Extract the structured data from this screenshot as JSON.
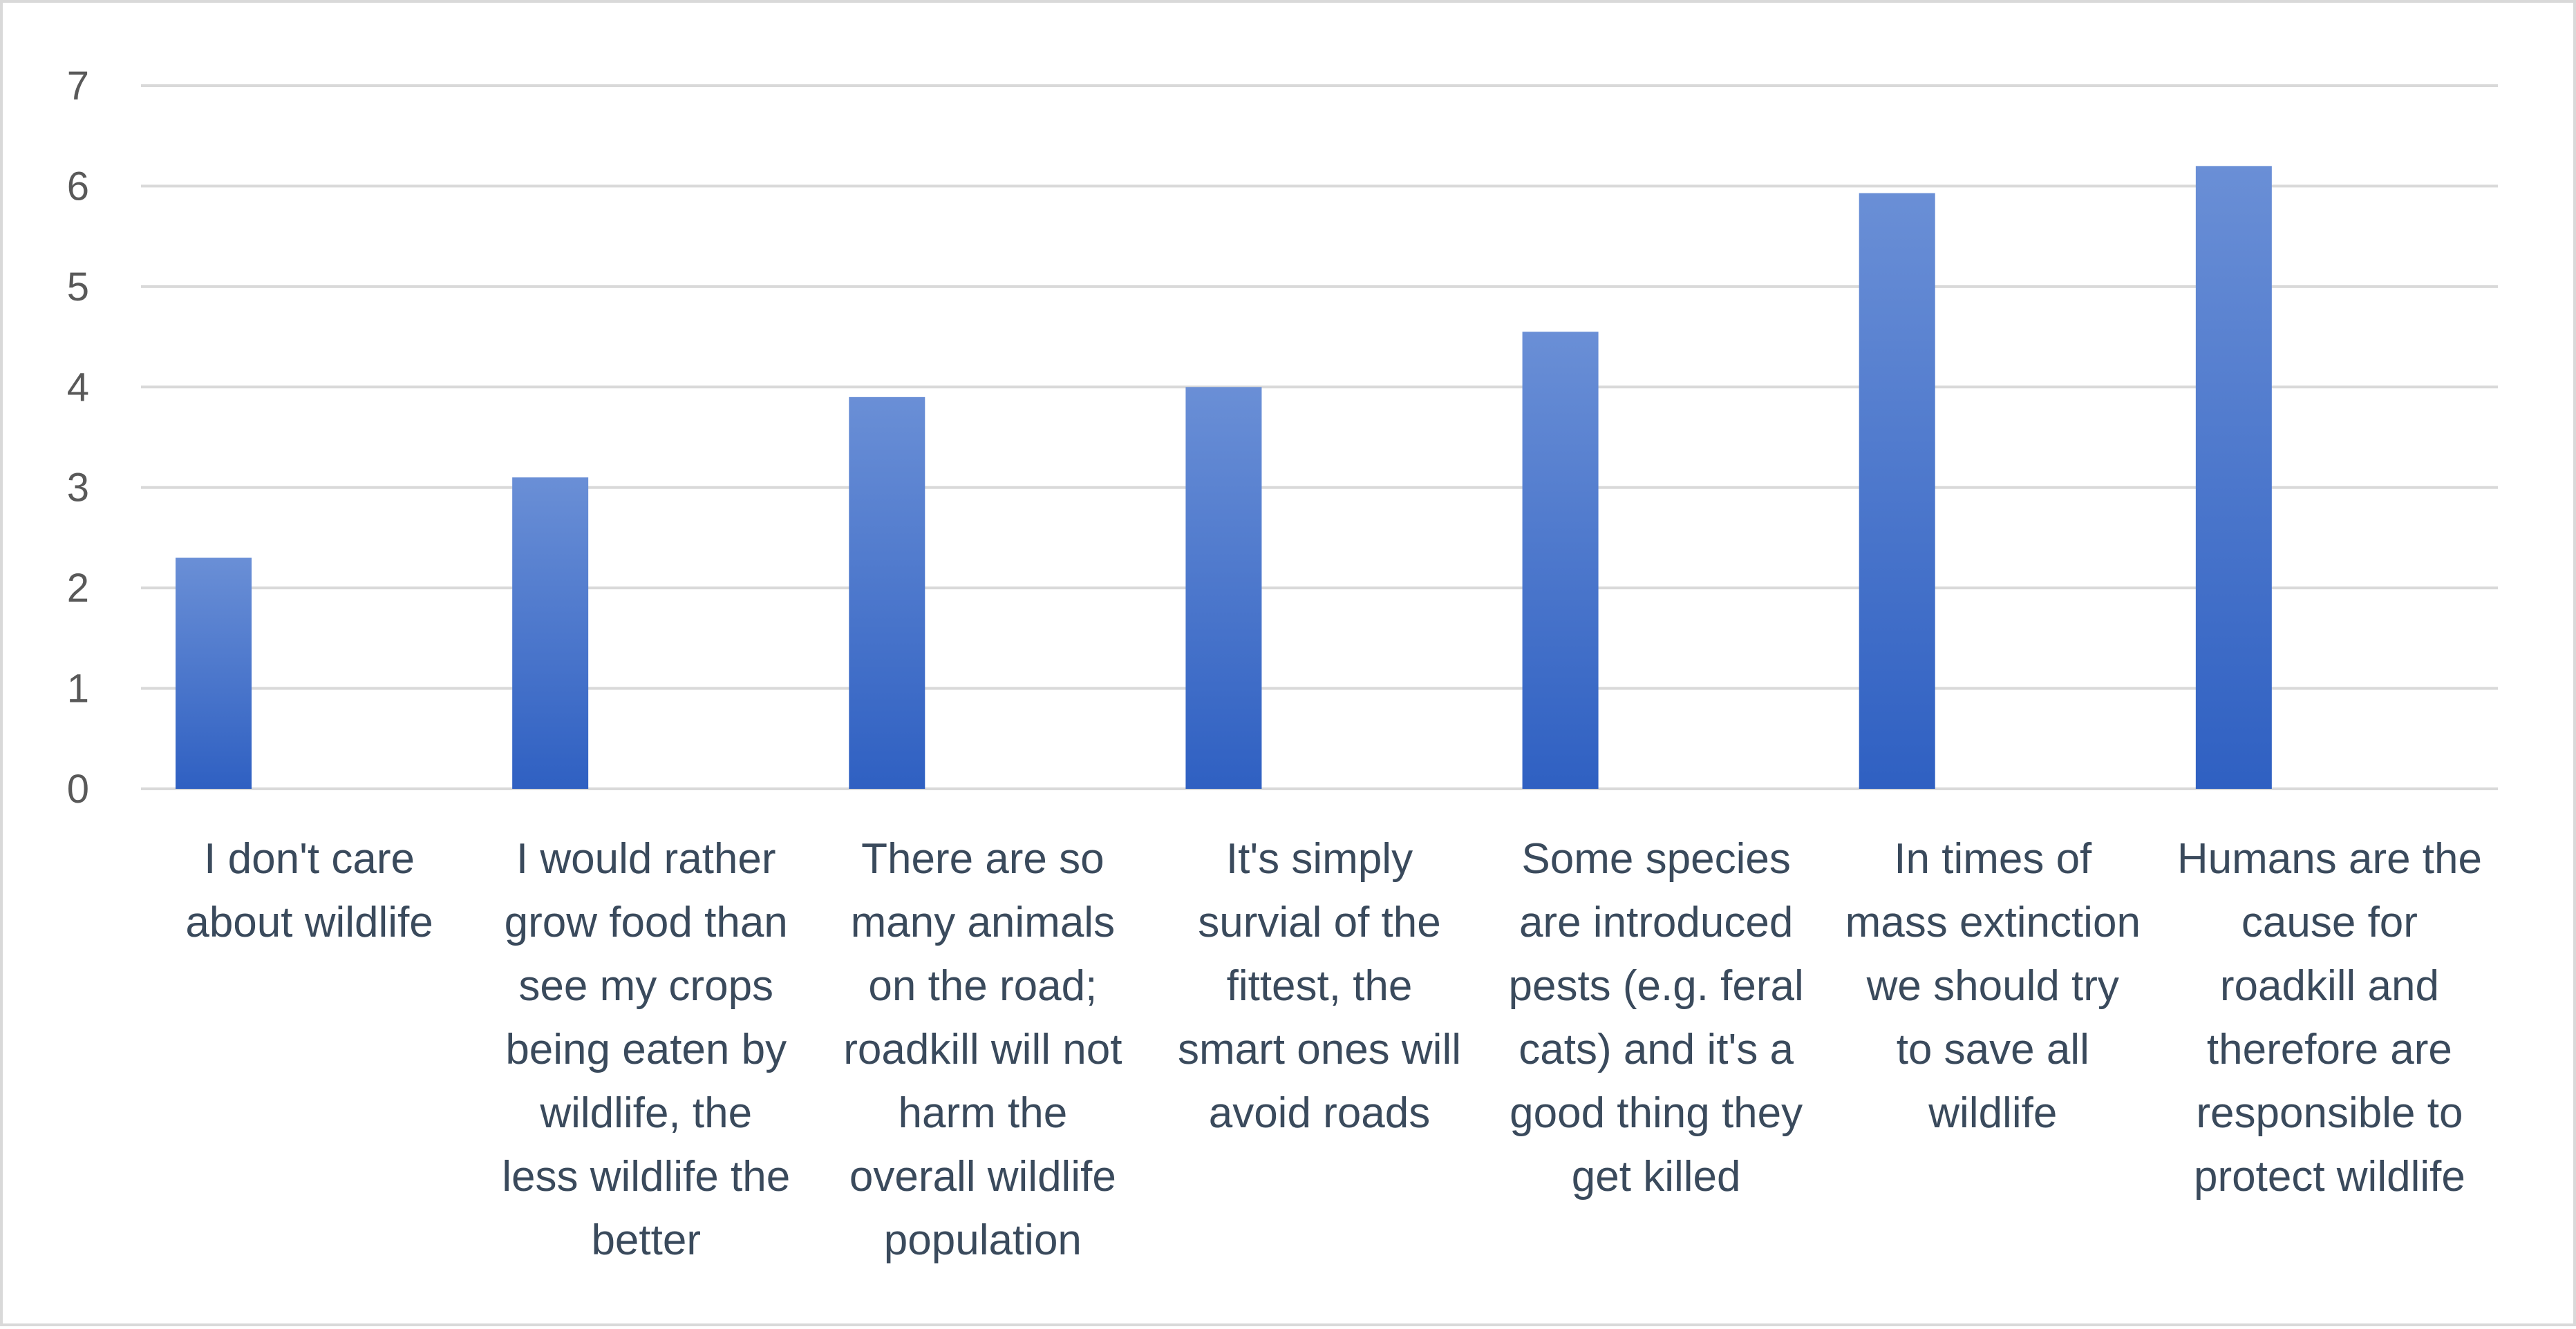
{
  "chart_data": {
    "type": "bar",
    "categories": [
      [
        "I don't care",
        "about wildlife"
      ],
      [
        "I would rather",
        "grow food than",
        "see my crops",
        "being eaten by",
        "wildlife, the",
        "less wildlife the",
        "better"
      ],
      [
        "There are so",
        "many animals",
        "on the road;",
        "roadkill will not",
        "harm the",
        "overall wildlife",
        "population"
      ],
      [
        "It's simply",
        "survial of the",
        "fittest, the",
        "smart ones will",
        "avoid roads"
      ],
      [
        "Some species",
        "are introduced",
        "pests (e.g. feral",
        "cats) and it's a",
        "good thing they",
        "get killed"
      ],
      [
        "In times of",
        "mass extinction",
        "we should try",
        "to save all",
        "wildlife"
      ],
      [
        "Humans are the",
        "cause for",
        "roadkill and",
        "therefore are",
        "responsible to",
        "protect wildlife"
      ]
    ],
    "values": [
      2.3,
      3.1,
      3.9,
      4.0,
      4.55,
      5.93,
      6.2
    ],
    "yticks": [
      "0",
      "1",
      "2",
      "3",
      "4",
      "5",
      "6",
      "7"
    ],
    "ylim": [
      0,
      7
    ],
    "grid": true,
    "colors": {
      "bar_top": "#6a8fd6",
      "bar_bottom": "#2f60c2",
      "grid": "#d9d9d9",
      "tick_text": "#595959",
      "label_text": "#3a4a5c"
    }
  }
}
